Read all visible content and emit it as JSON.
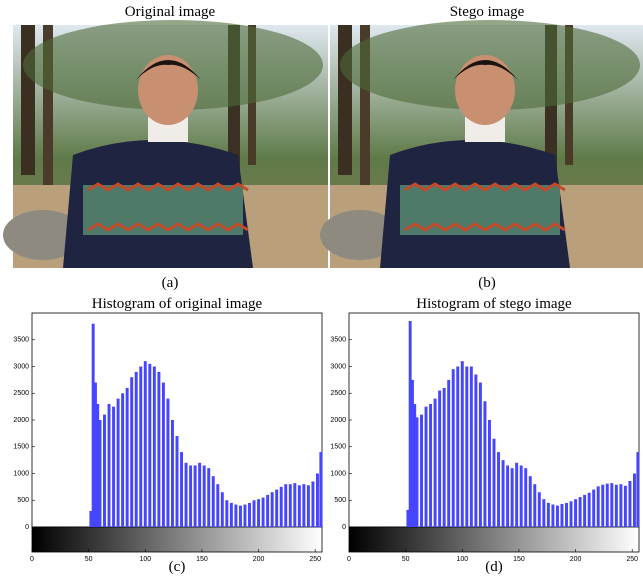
{
  "images": [
    {
      "title": "Original image",
      "caption": "(a)"
    },
    {
      "title": "Stego image",
      "caption": "(b)"
    }
  ],
  "chart_data": [
    {
      "type": "histogram",
      "title": "Histogram of original image",
      "caption": "(c)",
      "color": "#4646ff",
      "x": [
        52,
        54,
        56,
        58,
        60,
        64,
        68,
        72,
        76,
        80,
        84,
        88,
        92,
        96,
        100,
        104,
        108,
        112,
        116,
        120,
        124,
        128,
        132,
        136,
        140,
        144,
        148,
        152,
        156,
        160,
        164,
        168,
        172,
        176,
        180,
        184,
        188,
        192,
        196,
        200,
        204,
        208,
        212,
        216,
        220,
        224,
        228,
        232,
        236,
        240,
        244,
        248,
        252,
        255
      ],
      "values": [
        300,
        3800,
        2700,
        2300,
        2000,
        2100,
        2300,
        2250,
        2400,
        2500,
        2600,
        2800,
        2900,
        3000,
        3100,
        3050,
        3000,
        2900,
        2700,
        2400,
        2000,
        1700,
        1400,
        1200,
        1150,
        1150,
        1200,
        1150,
        1100,
        950,
        800,
        650,
        500,
        450,
        420,
        400,
        420,
        450,
        500,
        520,
        550,
        600,
        650,
        700,
        750,
        800,
        800,
        820,
        780,
        800,
        780,
        850,
        1000,
        1400
      ],
      "xlim": [
        0,
        256
      ],
      "ylim": [
        0,
        4000
      ],
      "xticks": [
        0,
        50,
        100,
        150,
        200,
        250
      ],
      "yticks": [
        0,
        500,
        1000,
        1500,
        2000,
        2500,
        3000,
        3500
      ]
    },
    {
      "type": "histogram",
      "title": "Histogram of stego image",
      "caption": "(d)",
      "color": "#4646ff",
      "x": [
        52,
        54,
        56,
        58,
        60,
        64,
        68,
        72,
        76,
        80,
        84,
        88,
        92,
        96,
        100,
        104,
        108,
        112,
        116,
        120,
        124,
        128,
        132,
        136,
        140,
        144,
        148,
        152,
        156,
        160,
        164,
        168,
        172,
        176,
        180,
        184,
        188,
        192,
        196,
        200,
        204,
        208,
        212,
        216,
        220,
        224,
        228,
        232,
        236,
        240,
        244,
        248,
        252,
        255
      ],
      "values": [
        320,
        3850,
        2750,
        2300,
        2050,
        2100,
        2250,
        2300,
        2400,
        2550,
        2600,
        2750,
        2950,
        3000,
        3100,
        3000,
        3000,
        2850,
        2700,
        2350,
        2000,
        1650,
        1400,
        1250,
        1150,
        1100,
        1200,
        1150,
        1100,
        950,
        800,
        650,
        520,
        450,
        420,
        400,
        430,
        450,
        480,
        520,
        560,
        600,
        640,
        700,
        760,
        790,
        810,
        820,
        790,
        800,
        770,
        860,
        1000,
        1400
      ],
      "xlim": [
        0,
        256
      ],
      "ylim": [
        0,
        4000
      ],
      "xticks": [
        0,
        50,
        100,
        150,
        200,
        250
      ],
      "yticks": [
        0,
        500,
        1000,
        1500,
        2000,
        2500,
        3000,
        3500
      ]
    }
  ]
}
